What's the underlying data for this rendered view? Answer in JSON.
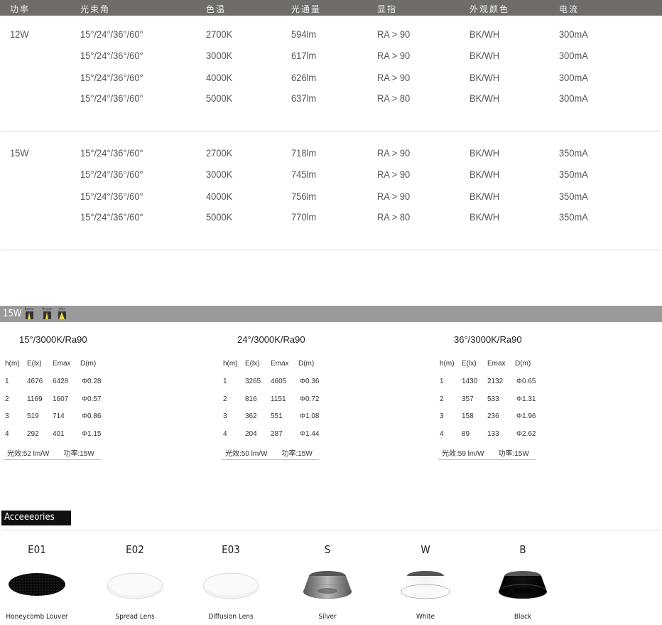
{
  "spec_table": {
    "headers": [
      "功率",
      "光束角",
      "色温",
      "光通量",
      "显指",
      "外观颜色",
      "电流"
    ],
    "groups": [
      {
        "power": "12W",
        "rows": [
          [
            "15°/24°/36°/60°",
            "2700K",
            "594lm",
            "RA > 90",
            "BK/WH",
            "300mA"
          ],
          [
            "15°/24°/36°/60°",
            "3000K",
            "617lm",
            "RA > 90",
            "BK/WH",
            "300mA"
          ],
          [
            "15°/24°/36°/60°",
            "4000K",
            "626lm",
            "RA > 90",
            "BK/WH",
            "300mA"
          ],
          [
            "15°/24°/36°/60°",
            "5000K",
            "637lm",
            "RA > 80",
            "BK/WH",
            "300mA"
          ]
        ]
      },
      {
        "power": "15W",
        "rows": [
          [
            "15°/24°/36°/60°",
            "2700K",
            "718lm",
            "RA > 90",
            "BK/WH",
            "350mA"
          ],
          [
            "15°/24°/36°/60°",
            "3000K",
            "745lm",
            "RA > 90",
            "BK/WH",
            "350mA"
          ],
          [
            "15°/24°/36°/60°",
            "4000K",
            "756lm",
            "RA > 90",
            "BK/WH",
            "350mA"
          ],
          [
            "15°/24°/36°/60°",
            "5000K",
            "770lm",
            "RA > 80",
            "BK/WH",
            "350mA"
          ]
        ]
      }
    ]
  },
  "photometric": {
    "section_label": "15W",
    "beam_icons": [
      "Narrow",
      "Medium",
      "Wide"
    ],
    "columns": [
      "h(m)",
      "E(lx)",
      "Emax",
      "D(m)"
    ],
    "blocks": [
      {
        "title": "15°/3000K/Ra90",
        "rows": [
          [
            "1",
            "4676",
            "6428",
            "Φ0.28"
          ],
          [
            "2",
            "1169",
            "1607",
            "Φ0.57"
          ],
          [
            "3",
            "519",
            "714",
            "Φ0.86"
          ],
          [
            "4",
            "292",
            "401",
            "Φ1.15"
          ]
        ],
        "efficacy": "光效:52 lm/W",
        "power": "功率:15W"
      },
      {
        "title": "24°/3000K/Ra90",
        "rows": [
          [
            "1",
            "3265",
            "4605",
            "Φ0.36"
          ],
          [
            "2",
            "816",
            "1151",
            "Φ0.72"
          ],
          [
            "3",
            "362",
            "551",
            "Φ1.08"
          ],
          [
            "4",
            "204",
            "287",
            "Φ1.44"
          ]
        ],
        "efficacy": "光效:50 lm/W",
        "power": "功率:15W"
      },
      {
        "title": "36°/3000K/Ra90",
        "rows": [
          [
            "1",
            "1430",
            "2132",
            "Φ0.65"
          ],
          [
            "2",
            "357",
            "533",
            "Φ1.31"
          ],
          [
            "3",
            "158",
            "236",
            "Φ1.96"
          ],
          [
            "4",
            "89",
            "133",
            "Φ2.62"
          ]
        ],
        "efficacy": "光效:59 lm/W",
        "power": "功率:15W"
      }
    ]
  },
  "accessories": {
    "label": "Acceeeories",
    "items": [
      {
        "code": "E01",
        "name": "Honeycomb Louver",
        "kind": "louver"
      },
      {
        "code": "E02",
        "name": "Spread Lens",
        "kind": "lens"
      },
      {
        "code": "E03",
        "name": "Diffusion Lens",
        "kind": "lens"
      },
      {
        "code": "S",
        "name": "Silver",
        "kind": "reflector",
        "color": "#b8b8b8"
      },
      {
        "code": "W",
        "name": "White",
        "kind": "reflector",
        "color": "#f4f4f4"
      },
      {
        "code": "B",
        "name": "Black",
        "kind": "reflector",
        "color": "#111111"
      }
    ]
  }
}
